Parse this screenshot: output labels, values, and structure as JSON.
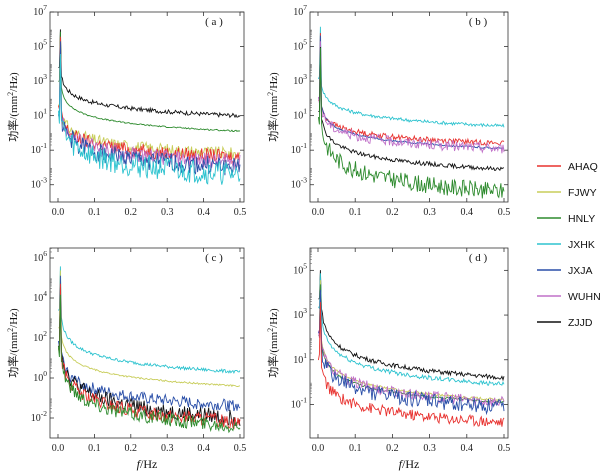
{
  "figure": {
    "xlabel_italic": "f",
    "xlabel_unit": "/Hz",
    "ylabel_base": "功率/(mm",
    "ylabel_sup": "2",
    "ylabel_tail": "/Hz)"
  },
  "legend": {
    "items": [
      {
        "name": "AHAQ",
        "color": "#e8322f"
      },
      {
        "name": "FJWY",
        "color": "#c8cd5a"
      },
      {
        "name": "HNLY",
        "color": "#2e8b2e"
      },
      {
        "name": "JXHK",
        "color": "#2ec3cf"
      },
      {
        "name": "JXJA",
        "color": "#2a4fa8"
      },
      {
        "name": "WUHN",
        "color": "#c070c8"
      },
      {
        "name": "ZJJD",
        "color": "#111111"
      }
    ]
  },
  "chart_data": [
    {
      "type": "line",
      "label": "( a )",
      "xlim": [
        0,
        0.5
      ],
      "ylim_exp": [
        -4,
        7
      ],
      "xticks": [
        "0.0",
        "0.1",
        "0.2",
        "0.3",
        "0.4",
        "0.5"
      ],
      "yticks": [
        {
          "exp": -3,
          "text": "10-3"
        },
        {
          "exp": -1,
          "text": "10-1"
        },
        {
          "exp": 1,
          "text": "101"
        },
        {
          "exp": 3,
          "text": "103"
        },
        {
          "exp": 5,
          "text": "105"
        },
        {
          "exp": 7,
          "text": "107"
        }
      ],
      "series": [
        {
          "name": "ZJJD",
          "log10_power_at_0.01": 3.3,
          "log10_power_at_0.5": 1.0,
          "noise": 0.12
        },
        {
          "name": "HNLY",
          "log10_power_at_0.01": 2.6,
          "log10_power_at_0.5": 0.1,
          "noise": 0.04
        },
        {
          "name": "FJWY",
          "log10_power_at_0.01": 1.2,
          "log10_power_at_0.5": -1.2,
          "noise": 0.35
        },
        {
          "name": "AHAQ",
          "log10_power_at_0.01": 1.0,
          "log10_power_at_0.5": -1.4,
          "noise": 0.4
        },
        {
          "name": "WUHN",
          "log10_power_at_0.01": 1.0,
          "log10_power_at_0.5": -1.7,
          "noise": 0.45
        },
        {
          "name": "JXJA",
          "log10_power_at_0.01": 0.9,
          "log10_power_at_0.5": -2.0,
          "noise": 0.55
        },
        {
          "name": "JXHK",
          "log10_power_at_0.01": 0.8,
          "log10_power_at_0.5": -2.4,
          "noise": 0.7
        }
      ]
    },
    {
      "type": "line",
      "label": "( b )",
      "xlim": [
        0,
        0.5
      ],
      "ylim_exp": [
        -4,
        7
      ],
      "xticks": [
        "0.0",
        "0.1",
        "0.2",
        "0.3",
        "0.4",
        "0.5"
      ],
      "yticks": [
        {
          "exp": -3,
          "text": "10-3"
        },
        {
          "exp": -1,
          "text": "10-1"
        },
        {
          "exp": 1,
          "text": "101"
        },
        {
          "exp": 3,
          "text": "103"
        },
        {
          "exp": 5,
          "text": "105"
        },
        {
          "exp": 7,
          "text": "107"
        }
      ],
      "series": [
        {
          "name": "JXHK",
          "log10_power_at_0.01": 2.8,
          "log10_power_at_0.5": 0.4,
          "noise": 0.1
        },
        {
          "name": "AHAQ",
          "log10_power_at_0.01": 1.5,
          "log10_power_at_0.5": -0.6,
          "noise": 0.15
        },
        {
          "name": "JXJA",
          "log10_power_at_0.01": 1.6,
          "log10_power_at_0.5": -0.9,
          "noise": 0.05
        },
        {
          "name": "WUHN",
          "log10_power_at_0.01": 1.4,
          "log10_power_at_0.5": -0.9,
          "noise": 0.3
        },
        {
          "name": "ZJJD",
          "log10_power_at_0.01": 0.9,
          "log10_power_at_0.5": -2.1,
          "noise": 0.12
        },
        {
          "name": "HNLY",
          "log10_power_at_0.01": 0.5,
          "log10_power_at_0.5": -3.4,
          "noise": 0.5
        }
      ]
    },
    {
      "type": "line",
      "label": "( c )",
      "xlim": [
        0,
        0.5
      ],
      "ylim_exp": [
        -3,
        6.5
      ],
      "xticks": [
        "0.0",
        "0.1",
        "0.2",
        "0.3",
        "0.4",
        "0.5"
      ],
      "yticks": [
        {
          "exp": -2,
          "text": "10-2"
        },
        {
          "exp": 0,
          "text": "100"
        },
        {
          "exp": 2,
          "text": "102"
        },
        {
          "exp": 4,
          "text": "104"
        },
        {
          "exp": 6,
          "text": "106"
        }
      ],
      "series": [
        {
          "name": "JXHK",
          "log10_power_at_0.01": 3.0,
          "log10_power_at_0.5": 0.3,
          "noise": 0.08
        },
        {
          "name": "FJWY",
          "log10_power_at_0.01": 2.1,
          "log10_power_at_0.5": -0.4,
          "noise": 0.04
        },
        {
          "name": "JXJA",
          "log10_power_at_0.01": 1.2,
          "log10_power_at_0.5": -1.4,
          "noise": 0.3
        },
        {
          "name": "ZJJD",
          "log10_power_at_0.01": 1.4,
          "log10_power_at_0.5": -2.0,
          "noise": 0.4
        },
        {
          "name": "AHAQ",
          "log10_power_at_0.01": 1.1,
          "log10_power_at_0.5": -2.2,
          "noise": 0.35
        },
        {
          "name": "HNLY",
          "log10_power_at_0.01": 1.0,
          "log10_power_at_0.5": -2.4,
          "noise": 0.35
        }
      ]
    },
    {
      "type": "line",
      "label": "( d )",
      "xlim": [
        0,
        0.5
      ],
      "ylim_exp": [
        -2.5,
        6
      ],
      "xticks": [
        "0.0",
        "0.1",
        "0.2",
        "0.3",
        "0.4",
        "0.5"
      ],
      "yticks": [
        {
          "exp": -1,
          "text": "10-1"
        },
        {
          "exp": 1,
          "text": "101"
        },
        {
          "exp": 3,
          "text": "103"
        },
        {
          "exp": 5,
          "text": "105"
        }
      ],
      "series": [
        {
          "name": "ZJJD",
          "log10_power_at_0.01": 3.3,
          "log10_power_at_0.5": 0.2,
          "noise": 0.1
        },
        {
          "name": "JXHK",
          "log10_power_at_0.01": 2.9,
          "log10_power_at_0.5": -0.1,
          "noise": 0.1
        },
        {
          "name": "FJWY",
          "log10_power_at_0.01": 1.9,
          "log10_power_at_0.5": -0.8,
          "noise": 0.05
        },
        {
          "name": "HNLY",
          "log10_power_at_0.01": 1.7,
          "log10_power_at_0.5": -0.9,
          "noise": 0.05
        },
        {
          "name": "WUHN",
          "log10_power_at_0.01": 1.8,
          "log10_power_at_0.5": -0.9,
          "noise": 0.25
        },
        {
          "name": "JXJA",
          "log10_power_at_0.01": 1.5,
          "log10_power_at_0.5": -1.1,
          "noise": 0.35
        },
        {
          "name": "AHAQ",
          "log10_power_at_0.01": 0.7,
          "log10_power_at_0.5": -1.8,
          "noise": 0.25
        }
      ]
    }
  ]
}
